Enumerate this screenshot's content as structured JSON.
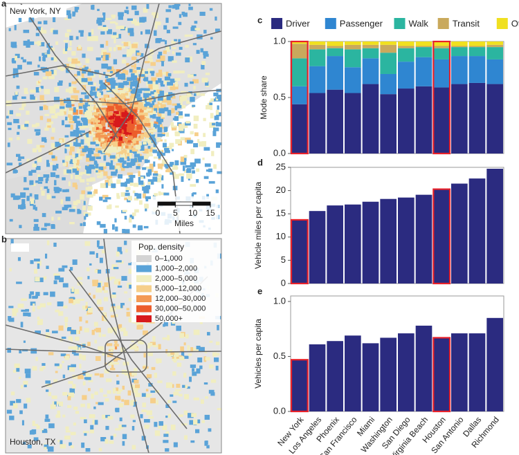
{
  "maps": [
    {
      "panel": "a",
      "title": "New York, NY",
      "scale_bar": {
        "ticks": [
          0,
          5,
          10,
          15
        ],
        "unit": "Miles"
      }
    },
    {
      "panel": "b",
      "title": "Houston, TX",
      "legend": {
        "title": "Pop. density",
        "classes": [
          {
            "label": "0–1,000",
            "color": "#d4d4d4"
          },
          {
            "label": "1,000–2,000",
            "color": "#5aa3d8"
          },
          {
            "label": "2,000–5,000",
            "color": "#f1eec0"
          },
          {
            "label": "5,000–12,000",
            "color": "#f6cf8a"
          },
          {
            "label": "12,000–30,000",
            "color": "#f39a55"
          },
          {
            "label": "30,000–50,000",
            "color": "#ec5d2c"
          },
          {
            "label": "50,000+",
            "color": "#d7191c"
          }
        ]
      }
    }
  ],
  "chart_data": [
    {
      "panel": "c",
      "type": "stacked-bar",
      "ylabel": "Mode share",
      "series": [
        {
          "name": "Driver",
          "color": "#2b2b80",
          "values": [
            0.44,
            0.54,
            0.57,
            0.54,
            0.62,
            0.53,
            0.58,
            0.6,
            0.59,
            0.62,
            0.63,
            0.62
          ]
        },
        {
          "name": "Passenger",
          "color": "#2f86d1",
          "values": [
            0.16,
            0.24,
            0.3,
            0.23,
            0.23,
            0.18,
            0.24,
            0.26,
            0.25,
            0.25,
            0.24,
            0.22
          ]
        },
        {
          "name": "Walk",
          "color": "#2bb5a0",
          "values": [
            0.25,
            0.15,
            0.07,
            0.16,
            0.09,
            0.19,
            0.12,
            0.09,
            0.1,
            0.08,
            0.08,
            0.11
          ]
        },
        {
          "name": "Transit",
          "color": "#c9a95c",
          "values": [
            0.13,
            0.04,
            0.02,
            0.04,
            0.03,
            0.07,
            0.02,
            0.01,
            0.02,
            0.01,
            0.01,
            0.02
          ]
        },
        {
          "name": "Other",
          "color": "#f0e020",
          "values": [
            0.02,
            0.03,
            0.04,
            0.03,
            0.03,
            0.03,
            0.04,
            0.04,
            0.04,
            0.04,
            0.04,
            0.03
          ]
        }
      ],
      "ylim": [
        0,
        1
      ],
      "yticks": [
        {
          "value": 0,
          "label": "0.0"
        },
        {
          "value": 0.5,
          "label": "0.5"
        },
        {
          "value": 1,
          "label": "1.0"
        }
      ],
      "highlight": {
        "color": "#e8212a",
        "indices": [
          0,
          8
        ]
      }
    },
    {
      "panel": "d",
      "type": "bar",
      "ylabel": "Vehicle miles per capita",
      "color": "#2b2b80",
      "values": [
        13.7,
        15.6,
        16.8,
        17.0,
        17.6,
        18.2,
        18.5,
        19.1,
        20.3,
        21.5,
        22.6,
        24.7
      ],
      "ylim": [
        0,
        25
      ],
      "yticks": [
        0,
        5,
        10,
        15,
        20,
        25
      ],
      "highlight": {
        "color": "#e8212a",
        "indices": [
          0,
          8
        ]
      }
    },
    {
      "panel": "e",
      "type": "bar",
      "ylabel": "Vehicles per capita",
      "color": "#2b2b80",
      "categories": [
        "New York",
        "Los Angeles",
        "Phoenix",
        "San Francisco",
        "Miami",
        "Washington",
        "San Diego",
        "Virginia Beach",
        "Houston",
        "San Antonio",
        "Dallas",
        "Richmond"
      ],
      "values": [
        0.47,
        0.61,
        0.64,
        0.69,
        0.62,
        0.67,
        0.71,
        0.78,
        0.67,
        0.71,
        0.71,
        0.85
      ],
      "ylim": [
        0,
        1.05
      ],
      "yticks": [
        {
          "value": 0,
          "label": "0.0"
        },
        {
          "value": 0.5,
          "label": "0.5"
        },
        {
          "value": 1,
          "label": "1.0"
        }
      ],
      "highlight": {
        "color": "#e8212a",
        "indices": [
          0,
          8
        ]
      }
    }
  ]
}
